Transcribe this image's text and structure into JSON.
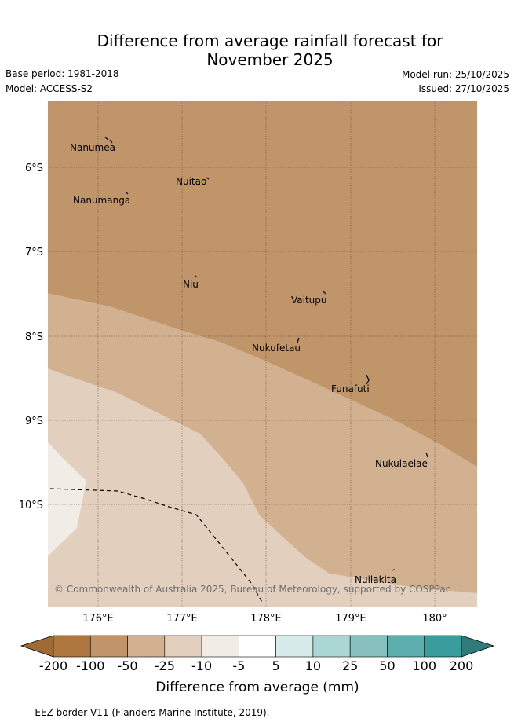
{
  "title_line1": "Difference from average rainfall forecast for",
  "title_line2": "November 2025",
  "base_period": "Base period: 1981-2018",
  "model": "Model: ACCESS-S2",
  "model_run": "Model run: 25/10/2025",
  "issued": "Issued: 27/10/2025",
  "map": {
    "lat_ticks": [
      "6°S",
      "7°S",
      "8°S",
      "9°S",
      "10°S"
    ],
    "lon_ticks": [
      "176°E",
      "177°E",
      "178°E",
      "179°E",
      "180°"
    ],
    "islands": [
      "Nanumea",
      "Nuitao",
      "Nanumanga",
      "Niu",
      "Vaitupu",
      "Nukufetau",
      "Funafuti",
      "Nukulaelae",
      "Nuilakita"
    ],
    "copyright": "© Commonwealth of Australia 2025, Bureau of Meteorology, supported by COSPPac"
  },
  "colorbar": {
    "ticks": [
      "-200",
      "-100",
      "-50",
      "-25",
      "-10",
      "-5",
      "5",
      "10",
      "25",
      "50",
      "100",
      "200"
    ],
    "colors": [
      "#ad773f",
      "#c0956a",
      "#d2b191",
      "#e2cfbd",
      "#f1ece6",
      "#ffffff",
      "#d6ecea",
      "#aad6d3",
      "#86c1c0",
      "#5faeae",
      "#3a9c9b"
    ],
    "low_extend_color": "#a06a36",
    "high_extend_color": "#2d7b7b",
    "label": "Difference from average (mm)"
  },
  "footnote": "--  --  -- EEZ border V11 (Flanders Marine Institute, 2019)."
}
